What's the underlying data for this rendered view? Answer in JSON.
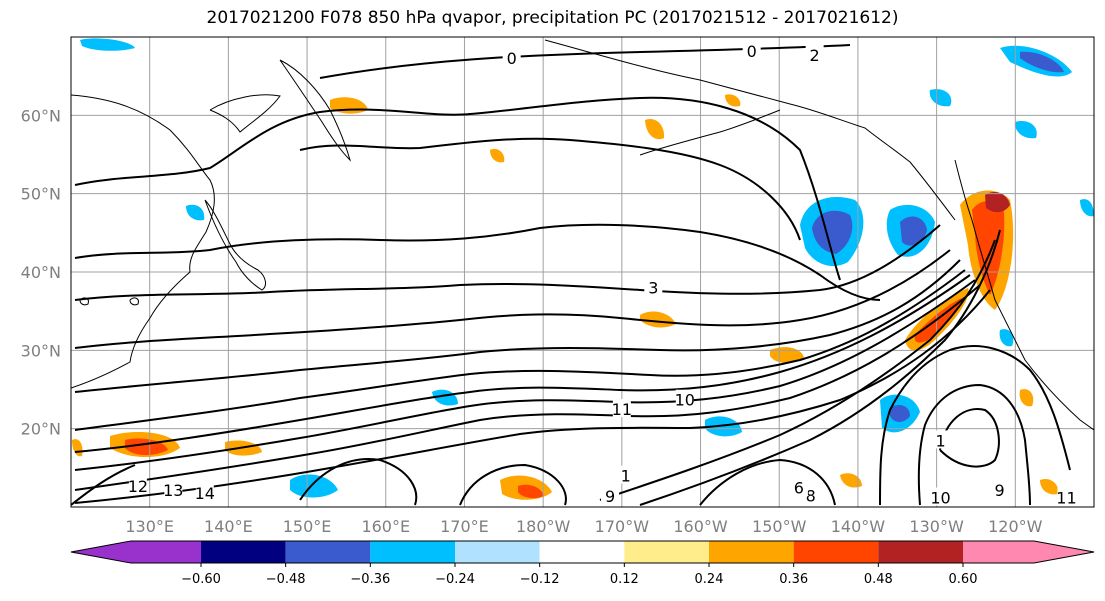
{
  "title": "2017021200 F078 850 hPa qvapor, precipitation PC (2017021512 - 2017021612)",
  "map": {
    "extent": {
      "lon_min": 120,
      "lon_max": 250,
      "lat_min": 10,
      "lat_max": 70
    },
    "lat_ticks": [
      {
        "value": 60,
        "label": "60°N"
      },
      {
        "value": 50,
        "label": "50°N"
      },
      {
        "value": 40,
        "label": "40°N"
      },
      {
        "value": 30,
        "label": "30°N"
      },
      {
        "value": 20,
        "label": "20°N"
      }
    ],
    "lon_ticks": [
      {
        "value": 130,
        "label": "130°E"
      },
      {
        "value": 140,
        "label": "140°E"
      },
      {
        "value": 150,
        "label": "150°E"
      },
      {
        "value": 160,
        "label": "160°E"
      },
      {
        "value": 170,
        "label": "170°E"
      },
      {
        "value": 180,
        "label": "180°W"
      },
      {
        "value": 190,
        "label": "170°W"
      },
      {
        "value": 200,
        "label": "160°W"
      },
      {
        "value": 210,
        "label": "150°W"
      },
      {
        "value": 220,
        "label": "140°W"
      },
      {
        "value": 230,
        "label": "130°W"
      },
      {
        "value": 240,
        "label": "120°W"
      }
    ],
    "grid_color": "#a0a0a0",
    "contour_labels": [
      {
        "text": "0",
        "lon": 176,
        "lat": 67.3
      },
      {
        "text": "0",
        "lon": 206.5,
        "lat": 68.2
      },
      {
        "text": "2",
        "lon": 214.5,
        "lat": 67.7
      },
      {
        "text": "3",
        "lon": 194,
        "lat": 38
      },
      {
        "text": "11",
        "lon": 190,
        "lat": 22.5
      },
      {
        "text": "10",
        "lon": 198,
        "lat": 23.7
      },
      {
        "text": "12",
        "lon": 128.5,
        "lat": 12.7
      },
      {
        "text": "13",
        "lon": 133,
        "lat": 12.2
      },
      {
        "text": "14",
        "lon": 137,
        "lat": 11.8
      },
      {
        "text": "1",
        "lon": 230.5,
        "lat": 18.5
      },
      {
        "text": "10",
        "lon": 230.5,
        "lat": 11.2
      },
      {
        "text": "9",
        "lon": 238,
        "lat": 12.2
      },
      {
        "text": "11",
        "lon": 246.5,
        "lat": 11.2
      },
      {
        "text": "8",
        "lon": 214,
        "lat": 11.5
      },
      {
        "text": "6",
        "lon": 212.5,
        "lat": 12.5
      },
      {
        "text": "9",
        "lon": 188.5,
        "lat": 11.4
      },
      {
        "text": "1",
        "lon": 190.5,
        "lat": 14
      }
    ]
  },
  "colorbar": {
    "colors": [
      "#9932cc",
      "#000080",
      "#3a5bcd",
      "#00bfff",
      "#b0e2ff",
      "#ffffff",
      "#ffec8b",
      "#ffa500",
      "#ff4500",
      "#b22222",
      "#ff88b0"
    ],
    "tick_values": [
      -0.6,
      -0.48,
      -0.36,
      -0.24,
      -0.12,
      0.12,
      0.24,
      0.36,
      0.48,
      0.6
    ],
    "tick_labels": [
      "−0.60",
      "−0.48",
      "−0.36",
      "−0.24",
      "−0.12",
      "0.12",
      "0.24",
      "0.36",
      "0.48",
      "0.60"
    ]
  }
}
